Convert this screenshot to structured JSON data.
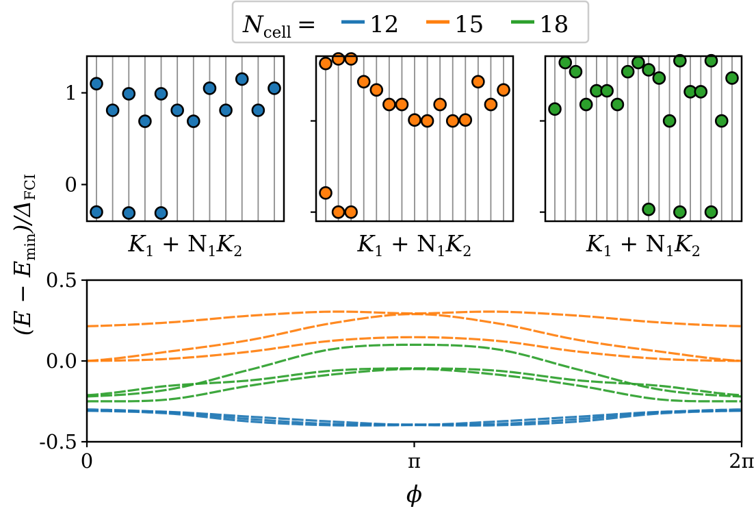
{
  "legend": {
    "title_main": "N",
    "title_sub": "cell",
    "equals": "=",
    "entries": [
      {
        "label": "12",
        "color": "#1f77b4"
      },
      {
        "label": "15",
        "color": "#ff7f0e"
      },
      {
        "label": "18",
        "color": "#2ca02c"
      }
    ]
  },
  "ylabel": {
    "pre": "(E − E",
    "sub1": "min",
    "mid": ")/Δ",
    "sub2": "FCI"
  },
  "chart_data": [
    {
      "type": "scatter",
      "series_label": "12",
      "color": "#1f77b4",
      "xlabel": "K1 + N1K2",
      "xlabel_parts": [
        "K",
        "1",
        " + N",
        "1",
        "K",
        "2"
      ],
      "ylim": [
        -0.4,
        1.4
      ],
      "yticks": [
        0,
        1
      ],
      "ytick_labels": [
        "0",
        "1"
      ],
      "num_k": 12,
      "points": [
        [
          0,
          1.1
        ],
        [
          0,
          -0.3
        ],
        [
          1,
          0.81
        ],
        [
          2,
          0.99
        ],
        [
          2,
          -0.31
        ],
        [
          3,
          0.69
        ],
        [
          4,
          0.99
        ],
        [
          4,
          -0.31
        ],
        [
          5,
          0.81
        ],
        [
          6,
          0.69
        ],
        [
          7,
          1.05
        ],
        [
          8,
          0.81
        ],
        [
          9,
          1.15
        ],
        [
          10,
          0.81
        ],
        [
          11,
          1.05
        ]
      ]
    },
    {
      "type": "scatter",
      "series_label": "15",
      "color": "#ff7f0e",
      "xlabel": "K1 + N1K2",
      "xlabel_parts": [
        "K",
        "1",
        " + N",
        "1",
        "K",
        "2"
      ],
      "ylim": [
        -0.1,
        1.71
      ],
      "yticks": [
        0,
        1
      ],
      "ytick_labels": [
        "",
        ""
      ],
      "num_k": 15,
      "points": [
        [
          0,
          1.63
        ],
        [
          0,
          0.21
        ],
        [
          1,
          1.68
        ],
        [
          1,
          0.0
        ],
        [
          2,
          1.68
        ],
        [
          2,
          0.0
        ],
        [
          3,
          1.43
        ],
        [
          4,
          1.34
        ],
        [
          5,
          1.18
        ],
        [
          6,
          1.18
        ],
        [
          7,
          1.01
        ],
        [
          8,
          1.0
        ],
        [
          9,
          1.18
        ],
        [
          10,
          1.0
        ],
        [
          11,
          1.01
        ],
        [
          12,
          1.43
        ],
        [
          13,
          1.18
        ],
        [
          14,
          1.34
        ]
      ]
    },
    {
      "type": "scatter",
      "series_label": "18",
      "color": "#2ca02c",
      "xlabel": "K1 + N1K2",
      "xlabel_parts": [
        "K",
        "1",
        " + N",
        "1",
        "K",
        "2"
      ],
      "ylim": [
        -0.1,
        1.71
      ],
      "yticks": [
        0,
        1
      ],
      "ytick_labels": [
        "",
        ""
      ],
      "num_k": 18,
      "points": [
        [
          0,
          1.13
        ],
        [
          1,
          1.64
        ],
        [
          2,
          1.54
        ],
        [
          3,
          1.18
        ],
        [
          4,
          1.33
        ],
        [
          5,
          1.33
        ],
        [
          6,
          1.18
        ],
        [
          7,
          1.54
        ],
        [
          8,
          1.64
        ],
        [
          9,
          1.56
        ],
        [
          9,
          0.03
        ],
        [
          10,
          1.47
        ],
        [
          11,
          1.0
        ],
        [
          12,
          1.66
        ],
        [
          12,
          0.0
        ],
        [
          13,
          1.32
        ],
        [
          14,
          1.32
        ],
        [
          15,
          1.66
        ],
        [
          15,
          0.0
        ],
        [
          16,
          1.0
        ],
        [
          17,
          1.47
        ]
      ]
    },
    {
      "type": "line",
      "xlabel": "ϕ",
      "ylim": [
        -0.5,
        0.5
      ],
      "yticks": [
        -0.5,
        0.0,
        0.5
      ],
      "ytick_labels": [
        "-0.5",
        "0.0",
        "0.5"
      ],
      "xlim_over_pi": [
        0,
        2
      ],
      "xticks_over_pi": [
        0,
        1,
        2
      ],
      "xtick_labels": [
        "0",
        "π",
        "2π"
      ],
      "x_over_pi": [
        0,
        0.25,
        0.5,
        0.75,
        1,
        1.25,
        1.5,
        1.75,
        2
      ],
      "line_style": "dashed",
      "series": [
        {
          "group": "12",
          "color": "#1f77b4",
          "values": [
            -0.308,
            -0.315,
            -0.345,
            -0.375,
            -0.395,
            -0.375,
            -0.345,
            -0.315,
            -0.308
          ]
        },
        {
          "group": "12",
          "color": "#1f77b4",
          "values": [
            -0.308,
            -0.325,
            -0.375,
            -0.398,
            -0.397,
            -0.398,
            -0.375,
            -0.325,
            -0.308
          ]
        },
        {
          "group": "12",
          "color": "#1f77b4",
          "values": [
            -0.3,
            -0.318,
            -0.36,
            -0.39,
            -0.393,
            -0.39,
            -0.36,
            -0.318,
            -0.3
          ]
        },
        {
          "group": "15",
          "color": "#ff7f0e",
          "values": [
            0.215,
            0.238,
            0.28,
            0.305,
            0.294,
            0.305,
            0.28,
            0.238,
            0.215
          ]
        },
        {
          "group": "15",
          "color": "#ff7f0e",
          "values": [
            0.0,
            0.058,
            0.13,
            0.234,
            0.29,
            0.234,
            0.13,
            0.058,
            0.0
          ]
        },
        {
          "group": "15",
          "color": "#ff7f0e",
          "values": [
            0.0,
            0.013,
            0.058,
            0.125,
            0.147,
            0.125,
            0.058,
            0.013,
            0.0
          ]
        },
        {
          "group": "18",
          "color": "#2ca02c",
          "values": [
            -0.22,
            -0.177,
            -0.053,
            0.073,
            0.1,
            0.073,
            -0.053,
            -0.177,
            -0.22
          ]
        },
        {
          "group": "18",
          "color": "#2ca02c",
          "values": [
            -0.212,
            -0.154,
            -0.12,
            -0.06,
            -0.046,
            -0.06,
            -0.12,
            -0.154,
            -0.212
          ]
        },
        {
          "group": "18",
          "color": "#2ca02c",
          "values": [
            -0.25,
            -0.238,
            -0.152,
            -0.084,
            -0.05,
            -0.084,
            -0.152,
            -0.238,
            -0.25
          ]
        }
      ]
    }
  ]
}
